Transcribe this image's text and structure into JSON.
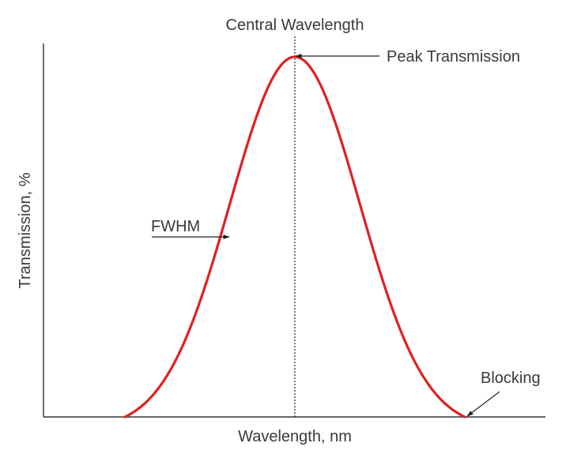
{
  "diagram": {
    "title": "Central Wavelength",
    "xlabel": "Wavelength, nm",
    "ylabel": "Transmission, %",
    "annotations": {
      "peak": "Peak Transmission",
      "fwhm": "FWHM",
      "blocking": "Blocking"
    },
    "colors": {
      "curve": "#e02020",
      "axis": "#333333",
      "text": "#3a3a3a"
    }
  }
}
